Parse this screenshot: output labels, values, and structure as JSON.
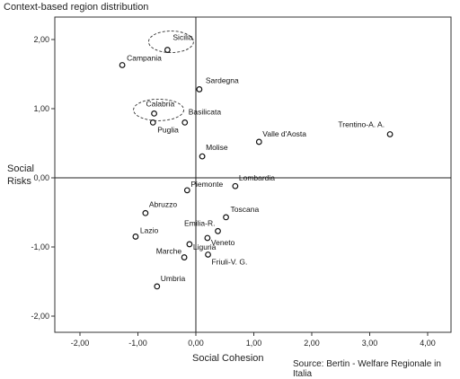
{
  "chart_data": {
    "type": "scatter",
    "title": "Context-based region distribution",
    "xlabel": "Social Cohesion",
    "ylabel": "Social Risks",
    "xlim": [
      -2.0,
      4.0
    ],
    "ylim": [
      -2.0,
      2.0
    ],
    "x_ticks": [
      -2,
      -1,
      0,
      1,
      2,
      3,
      4
    ],
    "y_ticks": [
      -2,
      -1,
      0,
      1,
      2
    ],
    "x_tick_labels": [
      "-2,00",
      "-1,00",
      "0,00",
      "1,00",
      "2,00",
      "3,00",
      "4,00"
    ],
    "y_tick_labels": [
      "-2,00",
      "-1,00",
      "0,00",
      "1,00",
      "2,00"
    ],
    "reference_lines": {
      "x": 0,
      "y": 0
    },
    "points": [
      {
        "label": "Sicilia",
        "x": -0.49,
        "y": 1.85
      },
      {
        "label": "Campania",
        "x": -1.27,
        "y": 1.63
      },
      {
        "label": "Sardegna",
        "x": 0.06,
        "y": 1.28
      },
      {
        "label": "Calabria",
        "x": -0.72,
        "y": 0.93
      },
      {
        "label": "Basilicata",
        "x": -0.19,
        "y": 0.8
      },
      {
        "label": "Puglia",
        "x": -0.74,
        "y": 0.8
      },
      {
        "label": "Valle d'Aosta",
        "x": 1.09,
        "y": 0.52
      },
      {
        "label": "Trentino-A. A.",
        "x": 3.35,
        "y": 0.63
      },
      {
        "label": "Molise",
        "x": 0.11,
        "y": 0.31
      },
      {
        "label": "Piemonte",
        "x": -0.15,
        "y": -0.18
      },
      {
        "label": "Lombardia",
        "x": 0.68,
        "y": -0.12
      },
      {
        "label": "Abruzzo",
        "x": -0.87,
        "y": -0.51
      },
      {
        "label": "Toscana",
        "x": 0.52,
        "y": -0.57
      },
      {
        "label": "Lazio",
        "x": -1.04,
        "y": -0.85
      },
      {
        "label": "Emilia-R.",
        "x": 0.38,
        "y": -0.77
      },
      {
        "label": "Veneto",
        "x": 0.2,
        "y": -0.87
      },
      {
        "label": "Liguria",
        "x": -0.11,
        "y": -0.96
      },
      {
        "label": "Marche",
        "x": -0.2,
        "y": -1.15
      },
      {
        "label": "Friuli-V. G.",
        "x": 0.21,
        "y": -1.11
      },
      {
        "label": "Umbria",
        "x": -0.67,
        "y": -1.57
      }
    ],
    "highlighted": [
      "Sicilia",
      "Calabria"
    ],
    "source": "Source: Bertin - Welfare Regionale in Italia"
  }
}
